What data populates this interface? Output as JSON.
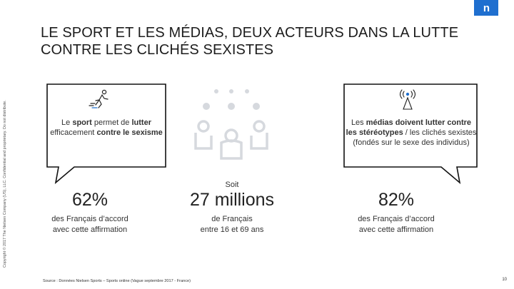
{
  "logo": {
    "text": "n"
  },
  "title": "LE SPORT ET LES MÉDIAS, DEUX ACTEURS DANS LA LUTTE CONTRE LES CLICHÉS SEXISTES",
  "copyright": "Copyright © 2017 The Nielsen Company (US), LLC. Confidential and proprietary. Do not distribute.",
  "left_card": {
    "pre": "Le ",
    "bold1": "sport",
    "mid1": " permet de ",
    "bold2": "lutter",
    "mid2": " efficacement ",
    "bold3": "contre le sexisme",
    "stat_value": "62%",
    "stat_desc_line1": "des Français d’accord",
    "stat_desc_line2": "avec cette affirmation"
  },
  "center": {
    "soit": "Soit",
    "stat_value": "27 millions",
    "stat_desc_line1": "de Français",
    "stat_desc_line2": "entre 16 et 69 ans"
  },
  "right_card": {
    "pre": "Les ",
    "bold1": "médias doivent lutter contre les stéréotypes",
    "mid1": " / les clichés sexistes (fondés sur le sexe des individus)",
    "stat_value": "82%",
    "stat_desc_line1": "des Français d’accord",
    "stat_desc_line2": "avec cette affirmation"
  },
  "source": "Source : Données Nielsen Sports – Sports online (Vague septembre 2017 - France)",
  "page_number": "10",
  "colors": {
    "accent": "#1f6fcf",
    "icon_gray": "#d6d9de",
    "bubble_border": "#111111"
  }
}
